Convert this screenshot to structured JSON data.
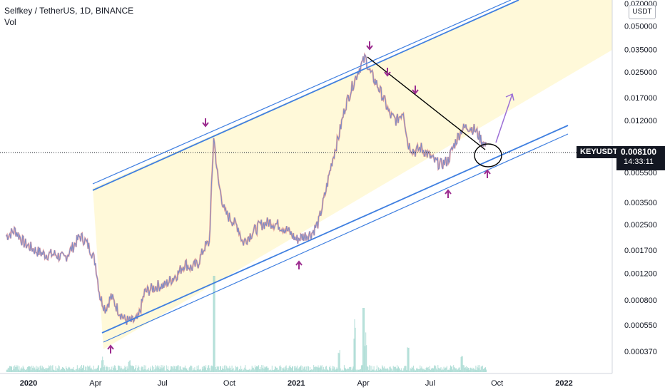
{
  "header": {
    "title": "Selfkey / TetherUS, 1D, BINANCE",
    "volume_label": "Vol"
  },
  "currency_button": "USDT",
  "symbol_tag": "KEYUSDT",
  "last_price": "0.008100",
  "countdown": "14:33:11",
  "colors": {
    "background": "#ffffff",
    "channel_fill": "#fff7cc",
    "channel_line": "#3f7fe0",
    "candle": "#7b8cc7",
    "candle_red": "#e06060",
    "arrow_marker": "#9c2c8f",
    "trend_line": "#000000",
    "projection_arrow": "#9c6fd6",
    "volume": "#8fd0c6"
  },
  "chart_data": {
    "type": "line",
    "title": "Selfkey / TetherUS, 1D, BINANCE",
    "scale": "log",
    "y_ticks": [
      "0.070000",
      "0.050000",
      "0.035000",
      "0.025000",
      "0.017000",
      "0.012000",
      "0.005500",
      "0.003500",
      "0.002500",
      "0.001700",
      "0.001200",
      "0.000800",
      "0.000550",
      "0.000370"
    ],
    "y_tick_values": [
      0.07,
      0.05,
      0.035,
      0.025,
      0.017,
      0.012,
      0.0055,
      0.0035,
      0.0025,
      0.0017,
      0.0012,
      0.0008,
      0.00055,
      0.00037
    ],
    "x_ticks": [
      "2020",
      "Apr",
      "Jul",
      "Oct",
      "2021",
      "Apr",
      "Jul",
      "Oct",
      "2022"
    ],
    "x_tick_months": [
      0,
      3,
      6,
      9,
      12,
      15,
      18,
      21,
      24
    ],
    "x_tick_bold": [
      true,
      false,
      false,
      false,
      true,
      false,
      false,
      false,
      true
    ],
    "x_range_months": [
      -1.05,
      26.2
    ],
    "y_range": [
      0.00028,
      0.075
    ],
    "current_price": 0.0081,
    "series": [
      {
        "points": [
          [
            -1.0,
            0.0021
          ],
          [
            -0.6,
            0.0023
          ],
          [
            -0.2,
            0.0019
          ],
          [
            0.3,
            0.0017
          ],
          [
            0.7,
            0.0016
          ],
          [
            1.2,
            0.0016
          ],
          [
            1.6,
            0.0015
          ],
          [
            2.0,
            0.0018
          ],
          [
            2.3,
            0.0021
          ],
          [
            2.5,
            0.002
          ],
          [
            2.8,
            0.0017
          ],
          [
            3.0,
            0.0014
          ],
          [
            3.2,
            0.00085
          ],
          [
            3.45,
            0.0007
          ],
          [
            3.7,
            0.00085
          ],
          [
            4.0,
            0.0007
          ],
          [
            4.3,
            0.0006
          ],
          [
            4.6,
            0.00058
          ],
          [
            4.9,
            0.0006
          ],
          [
            5.2,
            0.0009
          ],
          [
            5.5,
            0.00095
          ],
          [
            5.8,
            0.001
          ],
          [
            6.1,
            0.001
          ],
          [
            6.4,
            0.0011
          ],
          [
            6.7,
            0.0012
          ],
          [
            7.0,
            0.0014
          ],
          [
            7.3,
            0.0013
          ],
          [
            7.6,
            0.0014
          ],
          [
            7.9,
            0.0018
          ],
          [
            8.1,
            0.0019
          ],
          [
            8.3,
            0.0095
          ],
          [
            8.5,
            0.0048
          ],
          [
            8.8,
            0.003
          ],
          [
            9.1,
            0.0027
          ],
          [
            9.4,
            0.0024
          ],
          [
            9.6,
            0.0019
          ],
          [
            10.0,
            0.0022
          ],
          [
            10.4,
            0.0025
          ],
          [
            10.8,
            0.0026
          ],
          [
            11.2,
            0.0025
          ],
          [
            11.6,
            0.0023
          ],
          [
            12.0,
            0.002
          ],
          [
            12.3,
            0.0021
          ],
          [
            12.7,
            0.0022
          ],
          [
            13.0,
            0.0026
          ],
          [
            13.3,
            0.004
          ],
          [
            13.6,
            0.0065
          ],
          [
            13.9,
            0.0095
          ],
          [
            14.2,
            0.015
          ],
          [
            14.5,
            0.02
          ],
          [
            14.8,
            0.026
          ],
          [
            15.1,
            0.031
          ],
          [
            15.3,
            0.025
          ],
          [
            15.6,
            0.021
          ],
          [
            15.9,
            0.017
          ],
          [
            16.2,
            0.013
          ],
          [
            16.5,
            0.012
          ],
          [
            16.8,
            0.014
          ],
          [
            17.0,
            0.0085
          ],
          [
            17.3,
            0.0075
          ],
          [
            17.6,
            0.008
          ],
          [
            17.9,
            0.0072
          ],
          [
            18.2,
            0.0065
          ],
          [
            18.5,
            0.0062
          ],
          [
            18.8,
            0.0066
          ],
          [
            19.1,
            0.0085
          ],
          [
            19.4,
            0.0105
          ],
          [
            19.7,
            0.011
          ],
          [
            20.0,
            0.0105
          ],
          [
            20.3,
            0.009
          ],
          [
            20.5,
            0.0081
          ]
        ]
      }
    ]
  }
}
